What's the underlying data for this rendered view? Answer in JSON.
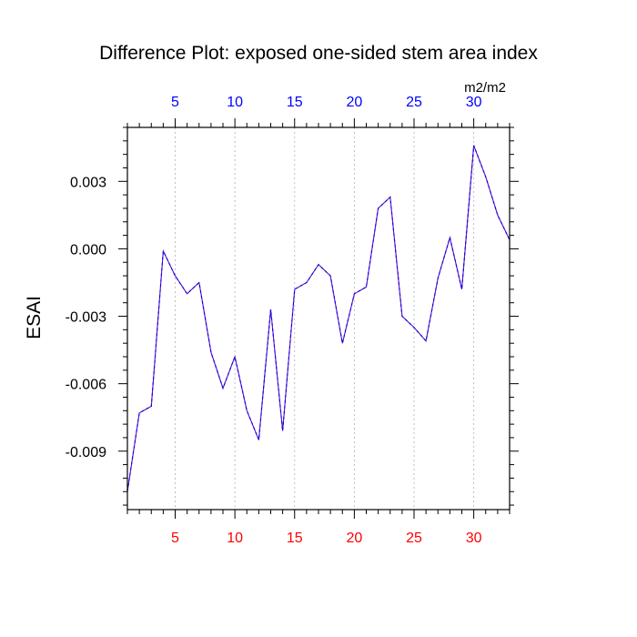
{
  "chart_data": {
    "type": "line",
    "title": "Difference Plot: exposed one-sided stem area index",
    "ylabel": "ESAI",
    "units_label": "m2/m2",
    "xlim": [
      1,
      33
    ],
    "ylim": [
      -0.0116,
      0.0054
    ],
    "x_ticks": [
      5,
      10,
      15,
      20,
      25,
      30
    ],
    "x_tick_labels": [
      "5",
      "10",
      "15",
      "20",
      "25",
      "30"
    ],
    "y_ticks": [
      0.003,
      0.0,
      -0.003,
      -0.006,
      -0.009
    ],
    "y_tick_labels": [
      "0.003",
      "0.000",
      "-0.003",
      "-0.006",
      "-0.009"
    ],
    "grid": "vertical-dashed",
    "colors": {
      "line": "#6a0dad",
      "line_dash": "#0000ff",
      "bottom_ticks": "#ff0000",
      "top_ticks": "#0000ff",
      "grid": "#b0b0b0"
    },
    "series": [
      {
        "x": [
          1,
          2,
          3,
          4,
          5,
          6,
          7,
          8,
          9,
          10,
          11,
          12,
          13,
          14,
          15,
          16,
          17,
          18,
          19,
          20,
          21,
          22,
          23,
          24,
          25,
          26,
          27,
          28,
          29,
          30,
          31,
          32,
          33
        ],
        "values": [
          -0.0108,
          -0.0073,
          -0.007,
          -0.0001,
          -0.0012,
          -0.002,
          -0.0015,
          -0.0046,
          -0.0062,
          -0.0048,
          -0.0072,
          -0.0085,
          -0.0027,
          -0.0081,
          -0.0018,
          -0.0015,
          -0.0007,
          -0.0012,
          -0.0042,
          -0.002,
          -0.0017,
          0.0018,
          0.0023,
          -0.003,
          -0.0035,
          -0.0041,
          -0.0013,
          0.0005,
          -0.0018,
          0.0046,
          0.0032,
          0.0015,
          0.0004
        ]
      }
    ]
  }
}
